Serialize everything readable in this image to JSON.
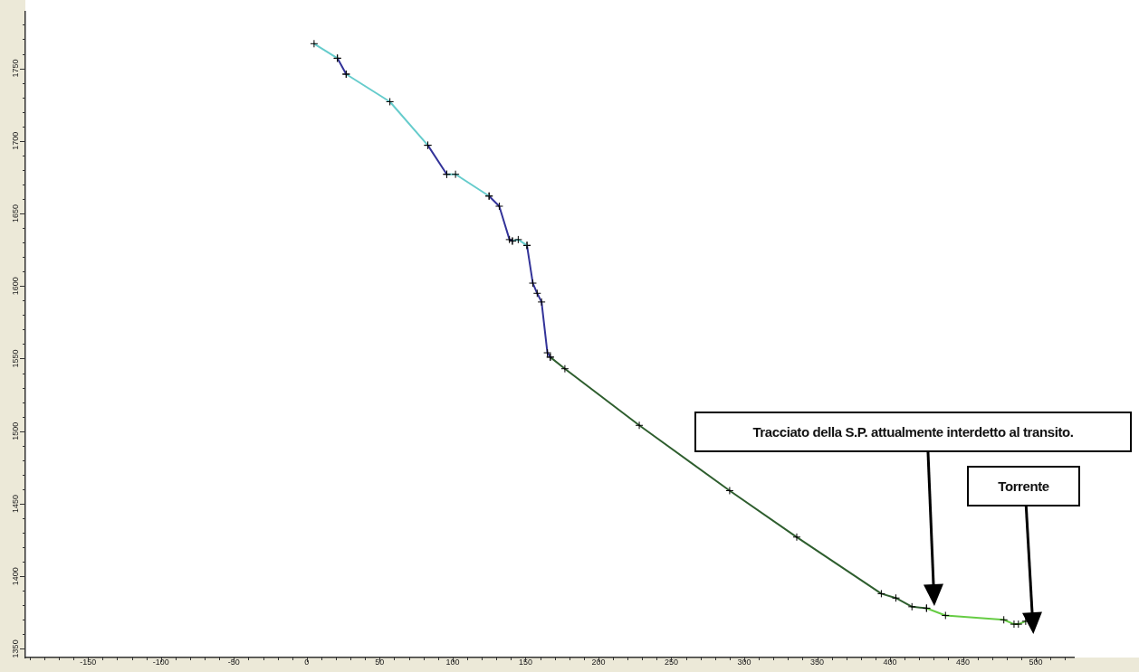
{
  "chart_data": {
    "type": "line",
    "marker": "cross",
    "line_style": "solid",
    "xlim": [
      -193,
      526
    ],
    "ylim": [
      1344,
      1789
    ],
    "xticks": [
      {
        "value": -190,
        "label": null
      },
      {
        "value": -180,
        "label": null
      },
      {
        "value": -170,
        "label": null
      },
      {
        "value": -160,
        "label": null
      },
      -150,
      {
        "value": -140,
        "label": null
      },
      {
        "value": -130,
        "label": null
      },
      {
        "value": -120,
        "label": null
      },
      {
        "value": -110,
        "label": null
      },
      -100,
      {
        "value": -90,
        "label": null
      },
      {
        "value": -80,
        "label": null
      },
      {
        "value": -70,
        "label": null
      },
      {
        "value": -60,
        "label": null
      },
      -50,
      {
        "value": -40,
        "label": null
      },
      {
        "value": -30,
        "label": null
      },
      {
        "value": -20,
        "label": null
      },
      {
        "value": -10,
        "label": null
      },
      0,
      {
        "value": 10,
        "label": null
      },
      {
        "value": 20,
        "label": null
      },
      {
        "value": 30,
        "label": null
      },
      {
        "value": 40,
        "label": null
      },
      50,
      {
        "value": 60,
        "label": null
      },
      {
        "value": 70,
        "label": null
      },
      {
        "value": 80,
        "label": null
      },
      {
        "value": 90,
        "label": null
      },
      100,
      {
        "value": 110,
        "label": null
      },
      {
        "value": 120,
        "label": null
      },
      {
        "value": 130,
        "label": null
      },
      {
        "value": 140,
        "label": null
      },
      150,
      {
        "value": 160,
        "label": null
      },
      {
        "value": 170,
        "label": null
      },
      {
        "value": 180,
        "label": null
      },
      {
        "value": 190,
        "label": null
      },
      200,
      {
        "value": 210,
        "label": null
      },
      {
        "value": 220,
        "label": null
      },
      {
        "value": 230,
        "label": null
      },
      {
        "value": 240,
        "label": null
      },
      250,
      {
        "value": 260,
        "label": null
      },
      {
        "value": 270,
        "label": null
      },
      {
        "value": 280,
        "label": null
      },
      {
        "value": 290,
        "label": null
      },
      300,
      {
        "value": 310,
        "label": null
      },
      {
        "value": 320,
        "label": null
      },
      {
        "value": 330,
        "label": null
      },
      {
        "value": 340,
        "label": null
      },
      350,
      {
        "value": 360,
        "label": null
      },
      {
        "value": 370,
        "label": null
      },
      {
        "value": 380,
        "label": null
      },
      {
        "value": 390,
        "label": null
      },
      400,
      {
        "value": 410,
        "label": null
      },
      {
        "value": 420,
        "label": null
      },
      {
        "value": 430,
        "label": null
      },
      {
        "value": 440,
        "label": null
      },
      450,
      {
        "value": 460,
        "label": null
      },
      {
        "value": 470,
        "label": null
      },
      {
        "value": 480,
        "label": null
      },
      {
        "value": 490,
        "label": null
      },
      500,
      {
        "value": 510,
        "label": null
      },
      {
        "value": 520,
        "label": null
      }
    ],
    "yticks": [
      1350,
      {
        "value": 1360,
        "label": null
      },
      {
        "value": 1370,
        "label": null
      },
      {
        "value": 1380,
        "label": null
      },
      {
        "value": 1390,
        "label": null
      },
      1400,
      {
        "value": 1410,
        "label": null
      },
      {
        "value": 1420,
        "label": null
      },
      {
        "value": 1430,
        "label": null
      },
      {
        "value": 1440,
        "label": null
      },
      1450,
      {
        "value": 1460,
        "label": null
      },
      {
        "value": 1470,
        "label": null
      },
      {
        "value": 1480,
        "label": null
      },
      {
        "value": 1490,
        "label": null
      },
      1500,
      {
        "value": 1510,
        "label": null
      },
      {
        "value": 1520,
        "label": null
      },
      {
        "value": 1530,
        "label": null
      },
      {
        "value": 1540,
        "label": null
      },
      1550,
      {
        "value": 1560,
        "label": null
      },
      {
        "value": 1570,
        "label": null
      },
      {
        "value": 1580,
        "label": null
      },
      {
        "value": 1590,
        "label": null
      },
      1600,
      {
        "value": 1610,
        "label": null
      },
      {
        "value": 1620,
        "label": null
      },
      {
        "value": 1630,
        "label": null
      },
      {
        "value": 1640,
        "label": null
      },
      1650,
      {
        "value": 1660,
        "label": null
      },
      {
        "value": 1670,
        "label": null
      },
      {
        "value": 1680,
        "label": null
      },
      {
        "value": 1690,
        "label": null
      },
      1700,
      {
        "value": 1710,
        "label": null
      },
      {
        "value": 1720,
        "label": null
      },
      {
        "value": 1730,
        "label": null
      },
      {
        "value": 1740,
        "label": null
      },
      1750,
      {
        "value": 1760,
        "label": null
      },
      {
        "value": 1770,
        "label": null
      },
      {
        "value": 1780,
        "label": null
      }
    ],
    "series": [
      {
        "color": "#66cccc",
        "x": [
          5,
          21
        ],
        "values": [
          1767,
          1757
        ]
      },
      {
        "color": "#333399",
        "x": [
          21,
          27
        ],
        "values": [
          1757,
          1746
        ]
      },
      {
        "color": "#66cccc",
        "x": [
          27,
          57,
          83
        ],
        "values": [
          1746,
          1727,
          1697
        ]
      },
      {
        "color": "#333399",
        "x": [
          83,
          96
        ],
        "values": [
          1697,
          1677
        ]
      },
      {
        "color": "#66cccc",
        "x": [
          96,
          102,
          125
        ],
        "values": [
          1677,
          1677,
          1662
        ]
      },
      {
        "color": "#333399",
        "x": [
          125,
          132,
          139,
          141
        ],
        "values": [
          1662,
          1655,
          1632,
          1631
        ]
      },
      {
        "color": "#66cccc",
        "x": [
          141,
          145,
          151
        ],
        "values": [
          1631,
          1632,
          1628
        ]
      },
      {
        "color": "#333399",
        "x": [
          151,
          155,
          158,
          161,
          165,
          167
        ],
        "values": [
          1628,
          1602,
          1595,
          1589,
          1554,
          1551
        ]
      },
      {
        "color": "#2e5e2e",
        "x": [
          167,
          177,
          228,
          290,
          336,
          394,
          404,
          415,
          425
        ],
        "values": [
          1551,
          1543,
          1504,
          1459,
          1427,
          1388,
          1385,
          1379,
          1378
        ]
      },
      {
        "color": "#66cc44",
        "x": [
          425,
          438,
          478,
          485,
          488,
          493
        ],
        "values": [
          1378,
          1373,
          1370,
          1367,
          1367,
          1369
        ]
      }
    ],
    "annotations": [
      "Tracciato della S.P. attualmente interdetto al transito.",
      "Torrente"
    ]
  }
}
